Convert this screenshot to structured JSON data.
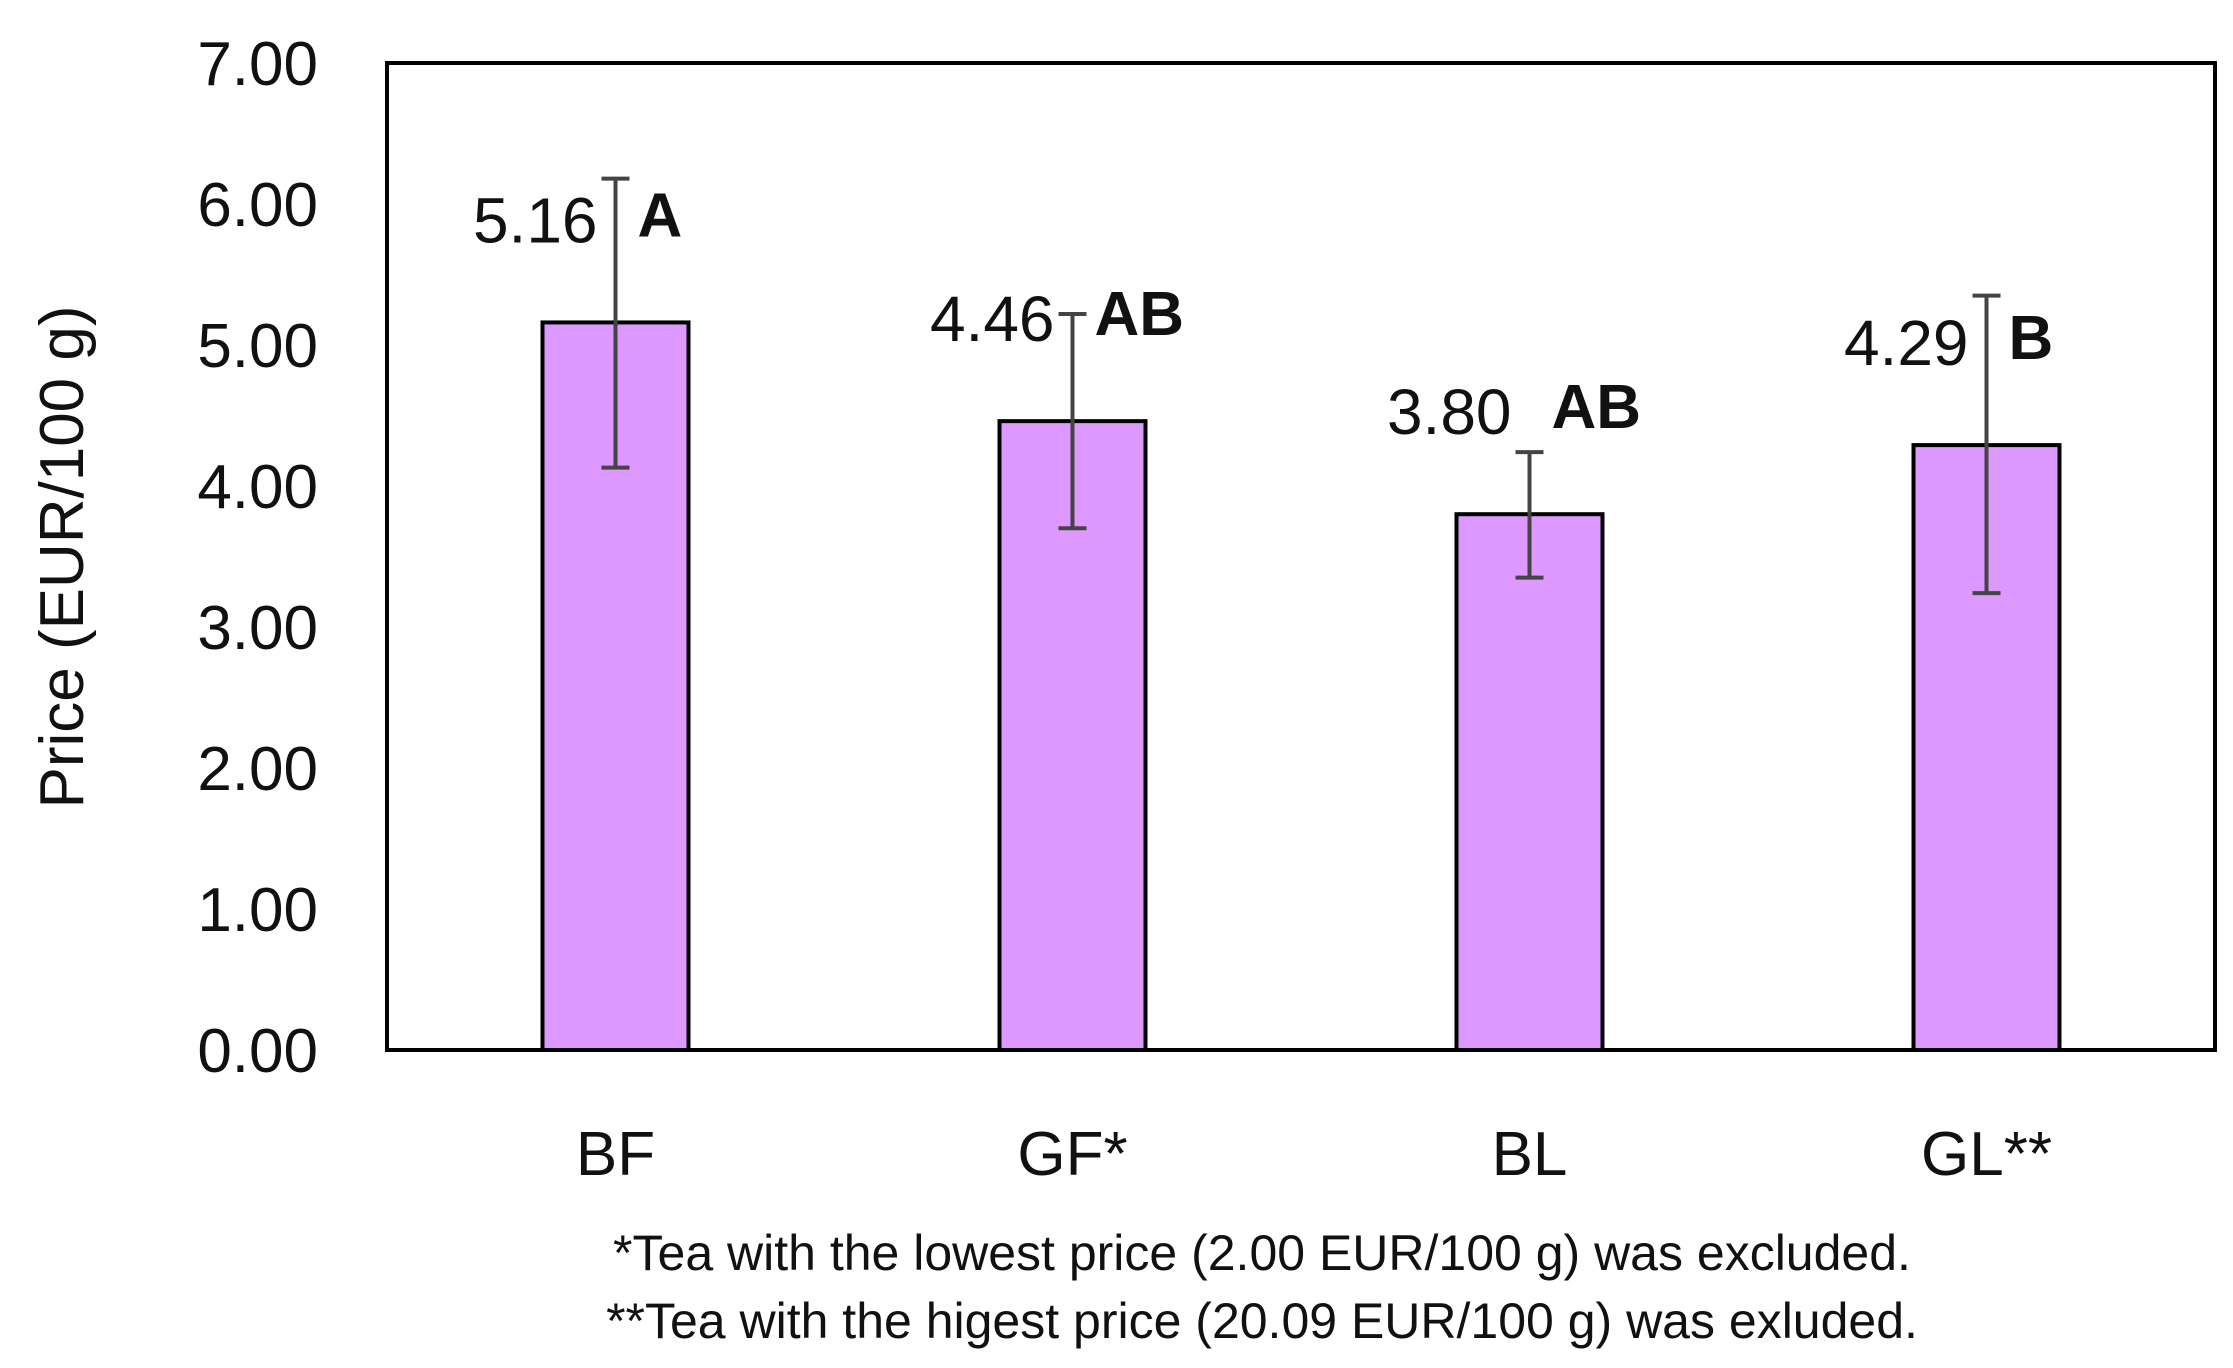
{
  "chart_data": {
    "type": "bar",
    "categories": [
      "BF",
      "GF*",
      "BL",
      "GL**"
    ],
    "values": [
      5.16,
      4.46,
      3.8,
      4.29
    ],
    "value_labels": [
      "5.16",
      "4.46",
      "3.80",
      "4.29"
    ],
    "error_low": [
      4.13,
      3.7,
      3.35,
      3.24
    ],
    "error_high": [
      6.18,
      5.22,
      4.24,
      5.35
    ],
    "significance": [
      "A",
      "AB",
      "AB",
      "B"
    ],
    "ylabel": "Price (EUR/100 g)",
    "ylim": [
      0,
      7
    ],
    "yticks": [
      "0.00",
      "1.00",
      "2.00",
      "3.00",
      "4.00",
      "5.00",
      "6.00",
      "7.00"
    ],
    "bar_color": "#dd99ff",
    "grid": false,
    "notes": [
      "*Tea with the lowest price (2.00 EUR/100 g) was excluded.",
      "**Tea with the higest price (20.09 EUR/100 g) was exluded."
    ]
  }
}
